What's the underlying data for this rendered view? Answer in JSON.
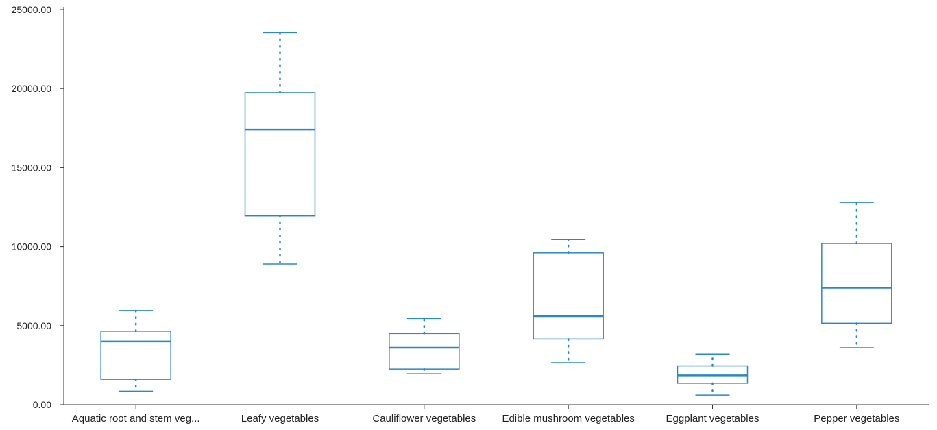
{
  "chart_data": {
    "type": "boxplot",
    "title": "",
    "xlabel": "",
    "ylabel": "",
    "ylim": [
      0,
      25000
    ],
    "y_ticks": [
      "0.00",
      "5000.00",
      "10000.00",
      "15000.00",
      "20000.00",
      "25000.00"
    ],
    "y_tick_values": [
      0,
      5000,
      10000,
      15000,
      20000,
      25000
    ],
    "grid": false,
    "color": "#2a86cd",
    "categories": [
      "Aquatic root and stem veg...",
      "Leafy vegetables",
      "Cauliflower vegetables",
      "Edible mushroom vegetables",
      "Eggplant vegetables",
      "Pepper vegetables"
    ],
    "boxes": [
      {
        "min": 850,
        "q1": 1600,
        "median": 4000,
        "q3": 4650,
        "max": 5950
      },
      {
        "min": 8900,
        "q1": 11950,
        "median": 17400,
        "q3": 19750,
        "max": 23550
      },
      {
        "min": 1950,
        "q1": 2250,
        "median": 3600,
        "q3": 4500,
        "max": 5450
      },
      {
        "min": 2650,
        "q1": 4150,
        "median": 5600,
        "q3": 9600,
        "max": 10450
      },
      {
        "min": 600,
        "q1": 1350,
        "median": 1850,
        "q3": 2450,
        "max": 3200
      },
      {
        "min": 3600,
        "q1": 5150,
        "median": 7400,
        "q3": 10200,
        "max": 12800
      }
    ]
  }
}
